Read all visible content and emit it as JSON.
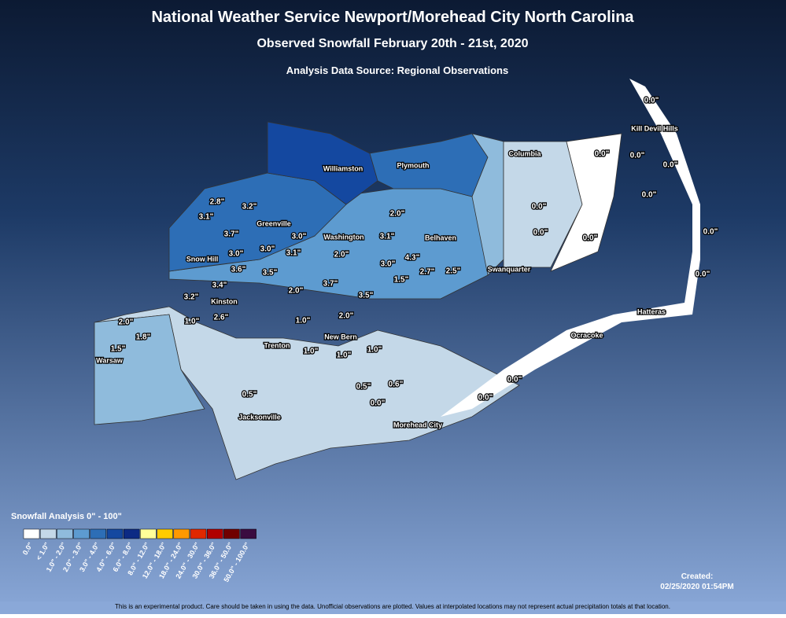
{
  "header": {
    "title": "National Weather Service Newport/Morehead City North Carolina",
    "subtitle": "Observed Snowfall February 20th - 21st, 2020",
    "source": "Analysis Data Source: Regional Observations"
  },
  "observations": [
    "0.0\"",
    "0.0\"",
    "0.0\"",
    "0.0\"",
    "0.0\"",
    "0.0\"",
    "0.0\"",
    "0.0\"",
    "0.0\"",
    "0.0\"",
    "2.8\"",
    "3.2\"",
    "3.1\"",
    "3.7\"",
    "3.0\"",
    "2.0\"",
    "3.1\"",
    "3.0\"",
    "3.0\"",
    "3.1\"",
    "2.0\"",
    "4.3\"",
    "3.0\"",
    "2.7\"",
    "2.5\"",
    "3.6\"",
    "3.5\"",
    "1.5\"",
    "3.4\"",
    "3.7\"",
    "2.0\"",
    "3.5\"",
    "3.2\"",
    "2.0\"",
    "1.0\"",
    "2.6\"",
    "1.0\"",
    "2.0\"",
    "1.8\"",
    "1.5\"",
    "1.0\"",
    "1.0\"",
    "1.0\"",
    "0.5\"",
    "0.5\"",
    "0.6\"",
    "0.0\"",
    "0.0\"",
    "0.0\""
  ],
  "places": [
    "Kill Devil Hills",
    "Columbia",
    "Williamston",
    "Plymouth",
    "Greenville",
    "Washington",
    "Belhaven",
    "Snow Hill",
    "Swanquarter",
    "Kinston",
    "Hatteras",
    "Ocracoke",
    "Trenton",
    "New Bern",
    "Warsaw",
    "Jacksonville",
    "Morehead City"
  ],
  "legend": {
    "title": "Snowfall Analysis 0\" - 100\"",
    "items": [
      {
        "label": "0.0\"",
        "color": "#ffffff"
      },
      {
        "label": "< 1.0\"",
        "color": "#c4d8e8"
      },
      {
        "label": "1.0\" - 2.0\"",
        "color": "#8fbbdc"
      },
      {
        "label": "2.0\" - 3.0\"",
        "color": "#5d9bd0"
      },
      {
        "label": "3.0\" - 4.0\"",
        "color": "#2d6eb6"
      },
      {
        "label": "4.0\" - 6.0\"",
        "color": "#1448a0"
      },
      {
        "label": "6.0\" - 8.0\"",
        "color": "#0c2a84"
      },
      {
        "label": "8.0\" - 12.0\"",
        "color": "#ffff99"
      },
      {
        "label": "12.0\" - 18.0\"",
        "color": "#ffcc00"
      },
      {
        "label": "18.0\" - 24.0\"",
        "color": "#ff9900"
      },
      {
        "label": "24.0\" - 30.0\"",
        "color": "#e02800"
      },
      {
        "label": "30.0\" - 36.0\"",
        "color": "#b00000"
      },
      {
        "label": "36.0\" - 50.0\"",
        "color": "#700000"
      },
      {
        "label": "50.0\" - 100.0\"",
        "color": "#3a0c40"
      }
    ]
  },
  "created": {
    "label": "Created:",
    "timestamp": "02/25/2020 01:54PM"
  },
  "disclaimer": "This is an experimental product. Care should be taken in using the data. Unofficial observations are plotted. Values at interpolated locations may not represent actual precipitation totals at that location."
}
